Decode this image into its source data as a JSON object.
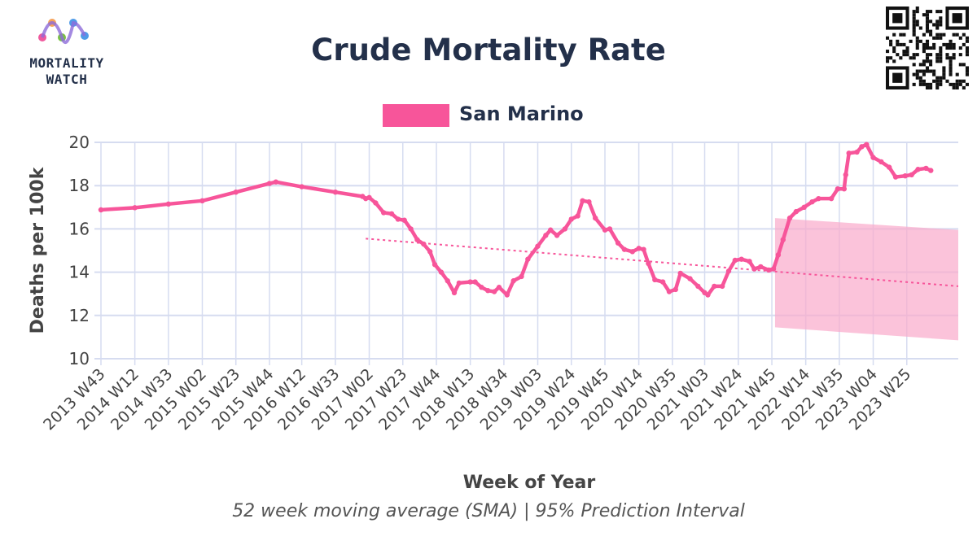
{
  "logo": {
    "line1": "MORTALITY",
    "line2": "WATCH"
  },
  "colors": {
    "series": "#f7559a",
    "band": "#f9a9cb",
    "grid": "#d6dcf0",
    "text": "#23304a"
  },
  "caption": "52 week moving average (SMA) | 95% Prediction Interval",
  "chart_data": {
    "type": "line",
    "title": "Crude Mortality Rate",
    "xlabel": "Week of Year",
    "ylabel": "Deaths per 100k",
    "ylim": [
      10,
      20
    ],
    "yticks": [
      10,
      12,
      14,
      16,
      18,
      20
    ],
    "xticks": [
      "2013 W43",
      "2014 W12",
      "2014 W33",
      "2015 W02",
      "2015 W23",
      "2015 W44",
      "2016 W12",
      "2016 W33",
      "2017 W02",
      "2017 W23",
      "2017 W44",
      "2018 W13",
      "2018 W34",
      "2019 W03",
      "2019 W24",
      "2019 W45",
      "2020 W14",
      "2020 W35",
      "2021 W03",
      "2021 W24",
      "2021 W45",
      "2022 W14",
      "2022 W35",
      "2023 W04",
      "2023 W25"
    ],
    "x_range": [
      "2013 W43",
      "2024 W05"
    ],
    "grid": true,
    "legend": "top-center",
    "series": [
      {
        "name": "San Marino",
        "type": "line",
        "points": [
          [
            "2013 W43",
            16.88
          ],
          [
            "2014 W12",
            16.98
          ],
          [
            "2014 W33",
            17.15
          ],
          [
            "2015 W02",
            17.3
          ],
          [
            "2015 W23",
            17.7
          ],
          [
            "2015 W44",
            18.1
          ],
          [
            "2015 W48",
            18.17
          ],
          [
            "2016 W12",
            17.95
          ],
          [
            "2016 W33",
            17.7
          ],
          [
            "2016 W50",
            17.5
          ],
          [
            "2016 W52",
            17.4
          ],
          [
            "2017 W02",
            17.45
          ],
          [
            "2017 W06",
            17.2
          ],
          [
            "2017 W11",
            16.75
          ],
          [
            "2017 W16",
            16.7
          ],
          [
            "2017 W20",
            16.45
          ],
          [
            "2017 W24",
            16.4
          ],
          [
            "2017 W28",
            16.0
          ],
          [
            "2017 W32",
            15.5
          ],
          [
            "2017 W36",
            15.3
          ],
          [
            "2017 W40",
            14.95
          ],
          [
            "2017 W43",
            14.35
          ],
          [
            "2017 W47",
            14.0
          ],
          [
            "2017 W51",
            13.6
          ],
          [
            "2018 W03",
            13.05
          ],
          [
            "2018 W06",
            13.5
          ],
          [
            "2018 W13",
            13.55
          ],
          [
            "2018 W16",
            13.55
          ],
          [
            "2018 W20",
            13.3
          ],
          [
            "2018 W24",
            13.15
          ],
          [
            "2018 W28",
            13.1
          ],
          [
            "2018 W31",
            13.3
          ],
          [
            "2018 W36",
            12.95
          ],
          [
            "2018 W40",
            13.6
          ],
          [
            "2018 W45",
            13.8
          ],
          [
            "2018 W49",
            14.6
          ],
          [
            "2019 W03",
            15.2
          ],
          [
            "2019 W08",
            15.7
          ],
          [
            "2019 W11",
            15.95
          ],
          [
            "2019 W15",
            15.7
          ],
          [
            "2019 W20",
            16.0
          ],
          [
            "2019 W24",
            16.45
          ],
          [
            "2019 W28",
            16.6
          ],
          [
            "2019 W31",
            17.3
          ],
          [
            "2019 W35",
            17.25
          ],
          [
            "2019 W39",
            16.5
          ],
          [
            "2019 W45",
            15.95
          ],
          [
            "2019 W48",
            16.0
          ],
          [
            "2020 W01",
            15.35
          ],
          [
            "2020 W05",
            15.05
          ],
          [
            "2020 W10",
            14.95
          ],
          [
            "2020 W14",
            15.1
          ],
          [
            "2020 W17",
            15.05
          ],
          [
            "2020 W20",
            14.4
          ],
          [
            "2020 W24",
            13.65
          ],
          [
            "2020 W29",
            13.55
          ],
          [
            "2020 W33",
            13.1
          ],
          [
            "2020 W37",
            13.2
          ],
          [
            "2020 W40",
            13.95
          ],
          [
            "2020 W46",
            13.7
          ],
          [
            "2020 W51",
            13.35
          ],
          [
            "2021 W03",
            13.05
          ],
          [
            "2021 W05",
            12.95
          ],
          [
            "2021 W09",
            13.35
          ],
          [
            "2021 W14",
            13.35
          ],
          [
            "2021 W18",
            14.05
          ],
          [
            "2021 W22",
            14.55
          ],
          [
            "2021 W26",
            14.6
          ],
          [
            "2021 W31",
            14.5
          ],
          [
            "2021 W34",
            14.15
          ],
          [
            "2021 W38",
            14.25
          ],
          [
            "2021 W43",
            14.1
          ],
          [
            "2021 W46",
            14.15
          ],
          [
            "2021 W49",
            14.8
          ],
          [
            "2021 W52",
            15.5
          ],
          [
            "2022 W04",
            16.5
          ],
          [
            "2022 W08",
            16.8
          ],
          [
            "2022 W13",
            17.0
          ],
          [
            "2022 W18",
            17.25
          ],
          [
            "2022 W22",
            17.4
          ],
          [
            "2022 W30",
            17.4
          ],
          [
            "2022 W34",
            17.85
          ],
          [
            "2022 W38",
            17.85
          ],
          [
            "2022 W39",
            18.5
          ],
          [
            "2022 W41",
            19.5
          ],
          [
            "2022 W46",
            19.55
          ],
          [
            "2022 W49",
            19.8
          ],
          [
            "2022 W52",
            19.9
          ],
          [
            "2023 W04",
            19.3
          ],
          [
            "2023 W09",
            19.1
          ],
          [
            "2023 W14",
            18.85
          ],
          [
            "2023 W18",
            18.4
          ],
          [
            "2023 W24",
            18.45
          ],
          [
            "2023 W28",
            18.5
          ],
          [
            "2023 W32",
            18.75
          ],
          [
            "2023 W37",
            18.8
          ],
          [
            "2023 W40",
            18.7
          ]
        ]
      },
      {
        "type": "trend",
        "points": [
          [
            "2016 W52",
            15.55
          ],
          [
            "2024 W05",
            13.35
          ]
        ]
      },
      {
        "type": "prediction_interval",
        "x_start": "2021 W47",
        "x_end": "2024 W05",
        "lower": [
          11.45,
          10.85
        ],
        "upper": [
          16.5,
          15.95
        ]
      }
    ]
  }
}
